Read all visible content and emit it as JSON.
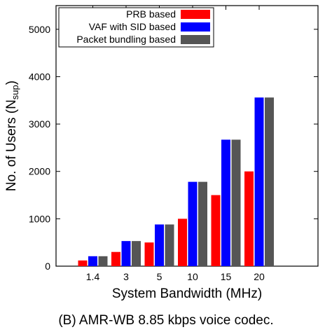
{
  "chart_data": {
    "type": "bar",
    "xlabel": "System Bandwidth (MHz)",
    "ylabel_main": "No. of Users (N",
    "ylabel_sub": "sup",
    "ylabel_close": ")",
    "categories": [
      "1.4",
      "3",
      "5",
      "10",
      "15",
      "20"
    ],
    "ylim": [
      0,
      5500
    ],
    "yticks": [
      0,
      1000,
      2000,
      3000,
      4000,
      5000
    ],
    "grid": false,
    "legend_position": "top-right",
    "series": [
      {
        "name": "PRB based",
        "color": "#ff0000",
        "values": [
          120,
          300,
          500,
          1000,
          1500,
          2000
        ]
      },
      {
        "name": "VAF with SID based",
        "color": "#0000ff",
        "values": [
          210,
          530,
          880,
          1780,
          2670,
          3560
        ]
      },
      {
        "name": "Packet bundling based",
        "color": "#555555",
        "values": [
          210,
          530,
          880,
          1780,
          2670,
          3560
        ]
      }
    ]
  },
  "caption": "(B) AMR-WB 8.85 kbps voice codec."
}
